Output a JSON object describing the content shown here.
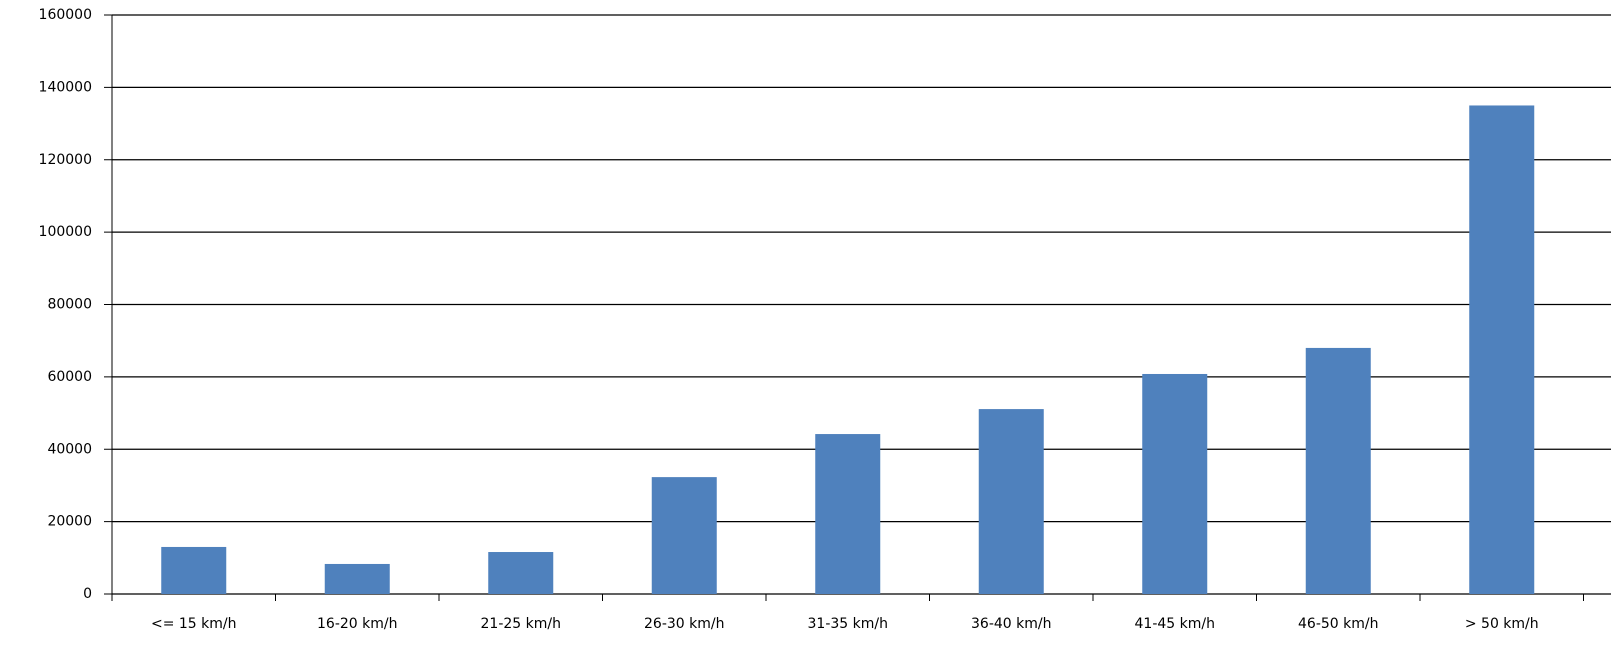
{
  "chart_data": {
    "type": "bar",
    "categories": [
      "<= 15 km/h",
      "16-20 km/h",
      "21-25 km/h",
      "26-30 km/h",
      "31-35 km/h",
      "36-40 km/h",
      "41-45 km/h",
      "46-50 km/h",
      "> 50 km/h"
    ],
    "values": [
      13000,
      8300,
      11600,
      32300,
      44200,
      51100,
      60800,
      68000,
      135000
    ],
    "color": "#4f81bd",
    "ylim": [
      0,
      160000
    ],
    "yticks": [
      0,
      20000,
      40000,
      60000,
      80000,
      100000,
      120000,
      140000,
      160000
    ],
    "grid": true
  }
}
